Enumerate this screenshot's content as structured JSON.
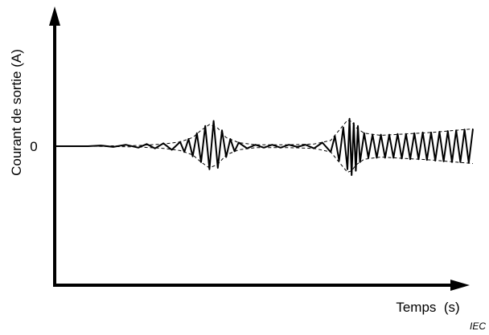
{
  "chart_data": {
    "type": "line",
    "title": "",
    "xlabel": "Temps  (s)",
    "ylabel": "Courant de sortie  (A)",
    "y_ticks": [
      {
        "value": 0,
        "label": "0"
      }
    ],
    "xlim": [
      0,
      100
    ],
    "ylim": [
      -1,
      1
    ],
    "grid": false,
    "legend": "none",
    "series": [
      {
        "style": "solid",
        "x": [
          0,
          8,
          11,
          14,
          17,
          20,
          22,
          24,
          26,
          28,
          30,
          31,
          32,
          33,
          34,
          35,
          36,
          37,
          38,
          39,
          40,
          41,
          42,
          43,
          44,
          46,
          48,
          50,
          52,
          54,
          56,
          58,
          60,
          62,
          64,
          66,
          67,
          68,
          69,
          70,
          70.5,
          71,
          71.5,
          72,
          72.5,
          73,
          74,
          75,
          76,
          77,
          78,
          79,
          80,
          81,
          82,
          83,
          84,
          85,
          86,
          87,
          88,
          89,
          90,
          91,
          92,
          93,
          94,
          95,
          96,
          97,
          98,
          99,
          100
        ],
        "y": [
          0,
          0,
          0.01,
          -0.01,
          0.02,
          -0.02,
          0.03,
          -0.03,
          0.04,
          -0.05,
          0.06,
          -0.08,
          0.1,
          -0.14,
          0.18,
          -0.22,
          0.28,
          -0.32,
          0.35,
          -0.3,
          0.22,
          -0.15,
          0.1,
          -0.07,
          0.05,
          -0.03,
          0.02,
          -0.02,
          0.02,
          -0.02,
          0.02,
          -0.01,
          0.02,
          -0.03,
          0.05,
          -0.08,
          0.14,
          -0.2,
          0.26,
          -0.32,
          0.38,
          -0.4,
          0.32,
          -0.34,
          0.28,
          -0.22,
          0.18,
          -0.16,
          0.16,
          -0.16,
          0.16,
          -0.16,
          0.16,
          -0.16,
          0.17,
          -0.17,
          0.17,
          -0.18,
          0.18,
          -0.18,
          0.19,
          -0.19,
          0.19,
          -0.2,
          0.2,
          -0.21,
          0.21,
          -0.22,
          0.22,
          -0.22,
          0.23,
          -0.23,
          0.24
        ]
      },
      {
        "style": "dashed-envelope-upper",
        "x": [
          8,
          20,
          26,
          30,
          33,
          35,
          37,
          39,
          41,
          44,
          48,
          56,
          62,
          66,
          68,
          70,
          71,
          72,
          74,
          78,
          84,
          90,
          96,
          100
        ],
        "y": [
          0,
          0.01,
          0.03,
          0.06,
          0.12,
          0.22,
          0.3,
          0.25,
          0.12,
          0.05,
          0.02,
          0.02,
          0.03,
          0.08,
          0.22,
          0.36,
          0.34,
          0.26,
          0.18,
          0.15,
          0.17,
          0.19,
          0.22,
          0.24
        ]
      },
      {
        "style": "dashed-envelope-lower",
        "x": [
          8,
          20,
          26,
          30,
          33,
          35,
          37,
          39,
          41,
          44,
          48,
          56,
          62,
          66,
          68,
          70,
          71,
          72,
          74,
          78,
          84,
          90,
          96,
          100
        ],
        "y": [
          0,
          -0.01,
          -0.03,
          -0.06,
          -0.12,
          -0.22,
          -0.3,
          -0.25,
          -0.12,
          -0.05,
          -0.02,
          -0.02,
          -0.03,
          -0.08,
          -0.22,
          -0.36,
          -0.34,
          -0.26,
          -0.18,
          -0.15,
          -0.17,
          -0.19,
          -0.22,
          -0.24
        ]
      }
    ],
    "watermark": "IEC"
  }
}
